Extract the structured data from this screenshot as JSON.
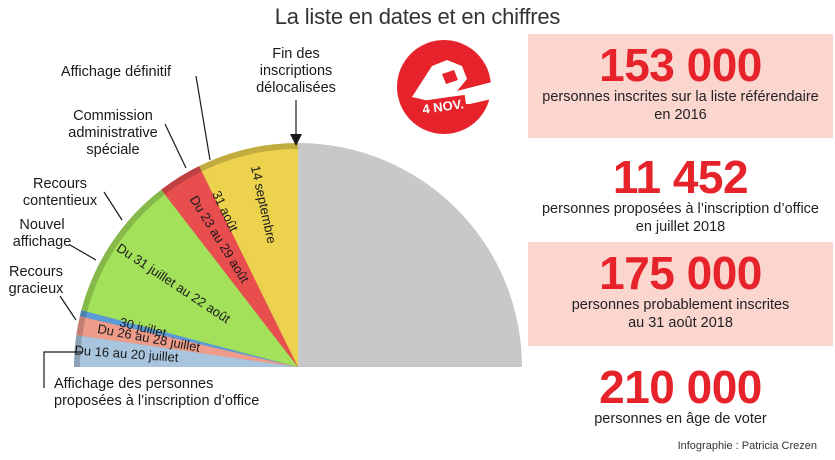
{
  "title": "La liste en dates et en chiffres",
  "chart_data": {
    "type": "pie",
    "variant": "semicircle-timeline",
    "segments": [
      {
        "label": "Du 16 au 20 juillet",
        "value": 5,
        "color": "#a9c4dd"
      },
      {
        "label": "Du 26 au 28 juillet",
        "value": 3,
        "color": "#ee9b8a"
      },
      {
        "label": "30 juillet",
        "value": 1,
        "color": "#5b9bd5"
      },
      {
        "label": "Du 31 juillet au 22 août",
        "value": 23,
        "color": "#a3e15a"
      },
      {
        "label": "Du 23 au 29 août",
        "value": 7,
        "color": "#e84e4e"
      },
      {
        "label": "31 août",
        "value": 1,
        "color": "#ecd24d"
      },
      {
        "label": "14 septembre",
        "value": 15,
        "color": "#ecd24d"
      }
    ],
    "remainder_color": "#c8c8c8",
    "callouts": [
      {
        "label": [
          "Affichage des personnes",
          "proposées à l’inscription d’office"
        ],
        "segment": 0
      },
      {
        "label": [
          "Recours",
          "gracieux"
        ],
        "segment": 1
      },
      {
        "label": [
          "Nouvel",
          "affichage"
        ],
        "segment": 2
      },
      {
        "label": [
          "Recours",
          "contentieux"
        ],
        "segment": 3
      },
      {
        "label": [
          "Commission",
          "administrative",
          "spéciale"
        ],
        "segment": 4
      },
      {
        "label": [
          "Affichage définitif"
        ],
        "segment": 5
      },
      {
        "label": [
          "Fin des",
          "inscriptions",
          "délocalisées"
        ],
        "segment": 6
      }
    ]
  },
  "logo": {
    "text": "4 NOV."
  },
  "stats": [
    {
      "number": "153 000",
      "lines": [
        "personnes inscrites sur la liste référendaire",
        "en 2016"
      ],
      "highlight": true
    },
    {
      "number": "11 452",
      "lines": [
        "personnes proposées à l’inscription d’office",
        "en juillet 2018"
      ],
      "highlight": false
    },
    {
      "number": "175 000",
      "lines": [
        "personnes probablement inscrites",
        "au 31 août 2018"
      ],
      "highlight": true
    },
    {
      "number": "210 000",
      "lines": [
        "personnes en âge de voter"
      ],
      "highlight": false
    }
  ],
  "credit": "Infographie : Patricia Crezen"
}
